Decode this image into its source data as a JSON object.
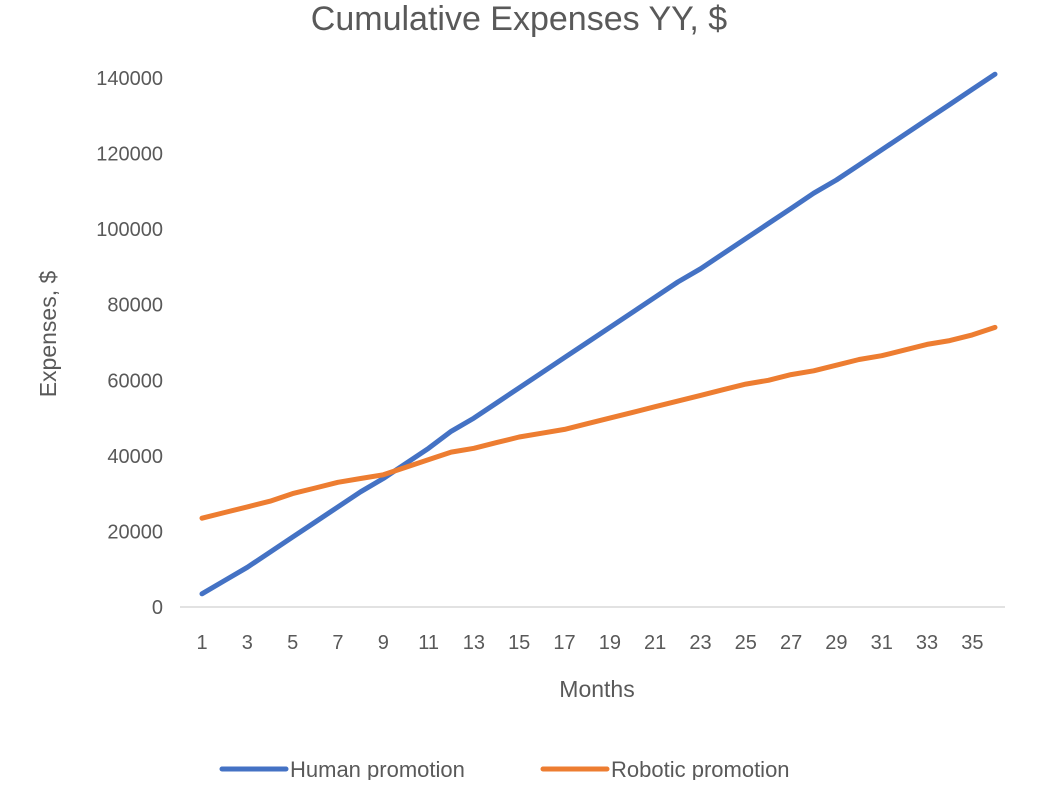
{
  "chart_data": {
    "type": "line",
    "title": "Cumulative Expenses YY, $",
    "xlabel": "Months",
    "ylabel": "Expenses, $",
    "ylim": [
      0,
      140000
    ],
    "yticks": [
      "0",
      "20000",
      "40000",
      "60000",
      "80000",
      "100000",
      "120000",
      "140000"
    ],
    "xtick_labels": [
      "1",
      "3",
      "5",
      "7",
      "9",
      "11",
      "13",
      "15",
      "17",
      "19",
      "21",
      "23",
      "25",
      "27",
      "29",
      "31",
      "33",
      "35"
    ],
    "x": [
      1,
      2,
      3,
      4,
      5,
      6,
      7,
      8,
      9,
      10,
      11,
      12,
      13,
      14,
      15,
      16,
      17,
      18,
      19,
      20,
      21,
      22,
      23,
      24,
      25,
      26,
      27,
      28,
      29,
      30,
      31,
      32,
      33,
      34,
      35,
      36
    ],
    "grid": false,
    "legend_position": "bottom",
    "series": [
      {
        "name": "Human promotion",
        "color": "#4472C4",
        "values": [
          3500,
          7000,
          10500,
          14500,
          18500,
          22500,
          26500,
          30500,
          34000,
          38000,
          42000,
          46500,
          50000,
          54000,
          58000,
          62000,
          66000,
          70000,
          74000,
          78000,
          82000,
          86000,
          89500,
          93500,
          97500,
          101500,
          105500,
          109500,
          113000,
          117000,
          121000,
          125000,
          129000,
          133000,
          137000,
          141000
        ]
      },
      {
        "name": "Robotic promotion",
        "color": "#ED7D31",
        "values": [
          23500,
          25000,
          26500,
          28000,
          30000,
          31500,
          33000,
          34000,
          35000,
          37000,
          39000,
          41000,
          42000,
          43500,
          45000,
          46000,
          47000,
          48500,
          50000,
          51500,
          53000,
          54500,
          56000,
          57500,
          59000,
          60000,
          61500,
          62500,
          64000,
          65500,
          66500,
          68000,
          69500,
          70500,
          72000,
          74000
        ]
      }
    ]
  }
}
